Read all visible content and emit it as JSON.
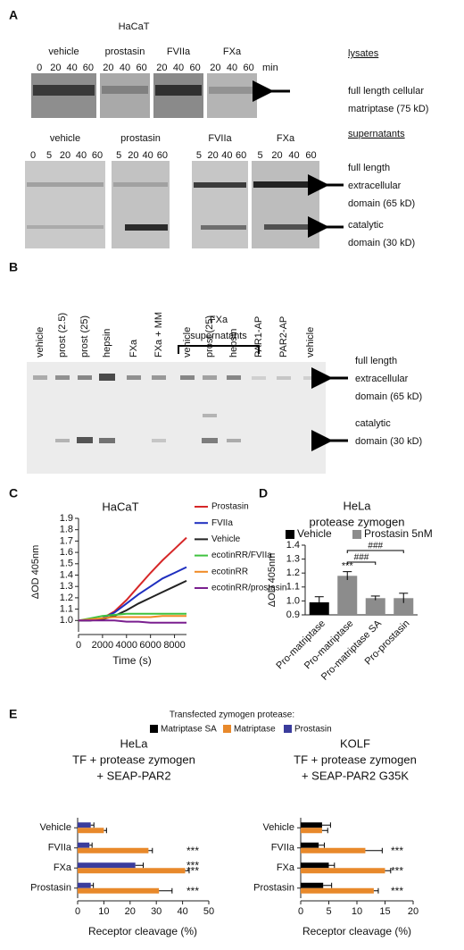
{
  "panel_a": {
    "label": "A",
    "cell_line": "HaCaT",
    "lysates": {
      "heading": "lysates",
      "unit": "min",
      "groups": [
        {
          "name": "vehicle",
          "times": [
            0,
            20,
            40,
            60
          ]
        },
        {
          "name": "prostasin",
          "times": [
            20,
            40,
            60
          ]
        },
        {
          "name": "FVIIa",
          "times": [
            20,
            40,
            60
          ]
        },
        {
          "name": "FXa",
          "times": [
            20,
            40,
            60
          ]
        }
      ],
      "band_labels": [
        [
          "full length cellular",
          "matriptase (75 kD)"
        ]
      ]
    },
    "supernatants": {
      "heading": "supernatants",
      "groups": [
        {
          "name": "vehicle",
          "times": [
            0,
            5,
            20,
            40,
            60
          ]
        },
        {
          "name": "prostasin",
          "times": [
            5,
            20,
            40,
            60
          ]
        },
        {
          "name": "FVIIa",
          "times": [
            5,
            20,
            40,
            60
          ]
        },
        {
          "name": "FXa",
          "times": [
            5,
            20,
            40,
            60
          ]
        }
      ],
      "band_labels": [
        [
          "full length",
          "extracellular",
          "domain (65 kD)"
        ],
        [
          "catalytic",
          "domain (30 kD)"
        ]
      ]
    }
  },
  "panel_b": {
    "label": "B",
    "group_label": [
      "FXa",
      "supernatants"
    ],
    "lanes": [
      "vehicle",
      "prost (2.5)",
      "prost (25)",
      "hepsin",
      "FXa",
      "FXa + MM",
      "vehicle",
      "prost (25)",
      "hepsin",
      "PAR1-AP",
      "PAR2-AP",
      "vehicle"
    ],
    "band_labels": [
      [
        "full length",
        "extracellular",
        "domain (65 kD)"
      ],
      [
        "catalytic",
        "domain (30 kD)"
      ]
    ]
  },
  "panel_e": {
    "label": "E",
    "legend_title": "Transfected zymogen protease:",
    "legend": [
      {
        "name": "Matriptase SA",
        "color": "#000000"
      },
      {
        "name": "Matriptase",
        "color": "#e8892b"
      },
      {
        "name": "Prostasin",
        "color": "#3a3c9c"
      }
    ]
  },
  "chart_data": [
    {
      "type": "line",
      "label": "C",
      "title": "HaCaT",
      "x_label": "Time (s)",
      "y_label": "ΔOD 405nm",
      "x": [
        0,
        1000,
        2000,
        3000,
        4000,
        5000,
        6000,
        7000,
        8000,
        9000
      ],
      "xlim": [
        0,
        9000
      ],
      "xticks": [
        0,
        2000,
        4000,
        6000,
        8000
      ],
      "ylim": [
        0.9,
        1.9
      ],
      "yticks": [
        {
          "value": 1,
          "label": "1.0"
        },
        1.1,
        1.2,
        1.3,
        1.4,
        1.5,
        1.6,
        1.7,
        1.8,
        1.9
      ],
      "series": [
        {
          "name": "Prostasin",
          "color": "#d62728",
          "values": [
            1.0,
            1.0,
            1.02,
            1.08,
            1.18,
            1.3,
            1.42,
            1.53,
            1.63,
            1.73
          ]
        },
        {
          "name": "FVIIa",
          "color": "#1f2fbf",
          "values": [
            1.0,
            1.0,
            1.02,
            1.07,
            1.15,
            1.23,
            1.3,
            1.37,
            1.42,
            1.47
          ]
        },
        {
          "name": "Vehicle",
          "color": "#222222",
          "values": [
            1.0,
            1.0,
            1.01,
            1.04,
            1.09,
            1.15,
            1.2,
            1.25,
            1.3,
            1.35
          ]
        },
        {
          "name": "ecotinRR/FVIIa",
          "color": "#3ec23e",
          "values": [
            1.0,
            1.02,
            1.04,
            1.05,
            1.06,
            1.06,
            1.06,
            1.06,
            1.06,
            1.06
          ]
        },
        {
          "name": "ecotinRR",
          "color": "#f08a24",
          "values": [
            1.0,
            1.01,
            1.02,
            1.03,
            1.03,
            1.03,
            1.03,
            1.04,
            1.04,
            1.04
          ]
        },
        {
          "name": "ecotinRR/prostasin",
          "color": "#7a1f8f",
          "values": [
            1.0,
            1.0,
            1.0,
            1.0,
            0.99,
            0.99,
            0.98,
            0.98,
            0.98,
            0.98
          ]
        }
      ]
    },
    {
      "type": "bar",
      "label": "D",
      "title": [
        "HeLa",
        "protease zymogen"
      ],
      "y_label": "ΔOD 405nm",
      "categories": [
        "Pro-matriptase",
        "Pro-matriptase",
        "Pro-matriptase SA",
        "Pro-prostasin"
      ],
      "ylim": [
        0.9,
        1.4
      ],
      "yticks": [
        0.9,
        {
          "value": 1,
          "label": "1.0"
        },
        1.1,
        1.2,
        1.3,
        1.4
      ],
      "series": [
        {
          "name": "Vehicle",
          "color": "#000000",
          "values": [
            0.99,
            null,
            null,
            null
          ],
          "errors": [
            0.04,
            null,
            null,
            null
          ]
        },
        {
          "name": "Prostasin 5nM",
          "color": "#8c8c8c",
          "values": [
            null,
            1.18,
            1.02,
            1.02
          ],
          "errors": [
            null,
            0.03,
            0.015,
            0.035
          ],
          "significance": [
            null,
            "***",
            null,
            null
          ]
        }
      ],
      "comparisons": [
        {
          "from": 1,
          "to": 3,
          "label": "###"
        },
        {
          "from": 1,
          "to": 2,
          "label": "###"
        }
      ]
    },
    {
      "type": "barh",
      "title": [
        "HeLa",
        "TF + protease zymogen",
        "+ SEAP-PAR2"
      ],
      "x_label": "Receptor cleavage (%)",
      "categories": [
        "Vehicle",
        "FVIIa",
        "FXa",
        "Prostasin"
      ],
      "xlim": [
        0,
        50
      ],
      "xticks": [
        0,
        10,
        20,
        30,
        40,
        50
      ],
      "series": [
        {
          "color": "#3a3c9c",
          "values": [
            5,
            4.5,
            22,
            5
          ],
          "errors": [
            1.2,
            1,
            3,
            1
          ],
          "significance": [
            null,
            null,
            "***",
            null
          ]
        },
        {
          "color": "#e8892b",
          "values": [
            10,
            27,
            41,
            31
          ],
          "errors": [
            1,
            1.5,
            1.5,
            5
          ],
          "significance": [
            null,
            "***",
            "***",
            "***"
          ]
        }
      ]
    },
    {
      "type": "barh",
      "title": [
        "KOLF",
        "TF + protease zymogen",
        "+ SEAP-PAR2 G35K"
      ],
      "x_label": "Receptor cleavage (%)",
      "categories": [
        "Vehicle",
        "FVIIa",
        "FXa",
        "Prostasin"
      ],
      "xlim": [
        0,
        20
      ],
      "xticks": [
        0,
        5,
        10,
        15,
        20
      ],
      "series": [
        {
          "color": "#000000",
          "values": [
            3.8,
            3.2,
            5,
            4
          ],
          "errors": [
            1.5,
            1,
            1,
            1.5
          ],
          "significance": [
            null,
            null,
            null,
            null
          ]
        },
        {
          "color": "#e8892b",
          "values": [
            3.8,
            11.5,
            15,
            13
          ],
          "errors": [
            1,
            3,
            1,
            0.8
          ],
          "significance": [
            null,
            "***",
            "***",
            "***"
          ]
        }
      ]
    }
  ]
}
